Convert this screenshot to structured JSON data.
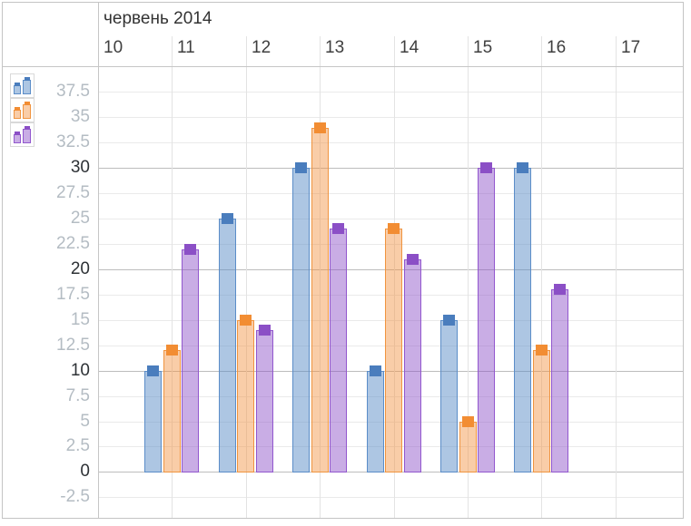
{
  "header": {
    "month_title": "червень 2014"
  },
  "x_axis": {
    "tick_labels": [
      "10",
      "11",
      "12",
      "13",
      "14",
      "15",
      "16",
      "17"
    ]
  },
  "y_axis": {
    "tick_labels": [
      "37.5",
      "35",
      "32.5",
      "30",
      "27.5",
      "25",
      "22.5",
      "20",
      "17.5",
      "15",
      "12.5",
      "10",
      "7.5",
      "5",
      "2.5",
      "0",
      "-2.5"
    ],
    "tick_values": [
      37.5,
      35,
      32.5,
      30,
      27.5,
      25,
      22.5,
      20,
      17.5,
      15,
      12.5,
      10,
      7.5,
      5,
      2.5,
      0,
      -2.5
    ],
    "major_label_color": "#2e3236",
    "minor_label_color": "#b4bcc3"
  },
  "legend": {
    "items": [
      {
        "name": "series-blue",
        "color": "#4a7dbd"
      },
      {
        "name": "series-orange",
        "color": "#f28d33"
      },
      {
        "name": "series-purple",
        "color": "#8b4fc6"
      }
    ]
  },
  "chart_data": {
    "type": "bar",
    "title": "червень 2014",
    "categories": [
      "11",
      "12",
      "13",
      "14",
      "15",
      "16"
    ],
    "x_tick_labels": [
      "10",
      "11",
      "12",
      "13",
      "14",
      "15",
      "16",
      "17"
    ],
    "series": [
      {
        "name": "blue",
        "values": [
          10,
          25,
          30,
          10,
          15,
          30
        ],
        "fill": "rgba(91,141,200,0.5)",
        "border": "#5b8dc8",
        "marker": "#4a7dbd"
      },
      {
        "name": "orange",
        "values": [
          12,
          15,
          34,
          24,
          5,
          12
        ],
        "fill": "rgba(242,145,61,0.45)",
        "border": "#f0943f",
        "marker": "#f28d33"
      },
      {
        "name": "purple",
        "values": [
          22,
          14,
          24,
          21,
          30,
          18
        ],
        "fill": "rgba(141,80,199,0.47)",
        "border": "#9257ce",
        "marker": "#8b4fc6"
      }
    ],
    "ylabel": "",
    "xlabel": "",
    "ylim": [
      -4.7,
      40
    ],
    "y_tick_step": 2.5,
    "y_major_every": 10,
    "grid": true,
    "legend_position": "top-left"
  },
  "colors": {
    "widget_border": "#c4c4c4",
    "axis_line": "#c6c6c6",
    "grid_minor": "#eaeaea",
    "grid_major": "#bdbdbd",
    "grid_vertical": "#e3e3e3",
    "title_text": "#333333",
    "x_tick_text": "#3f3f3f"
  }
}
